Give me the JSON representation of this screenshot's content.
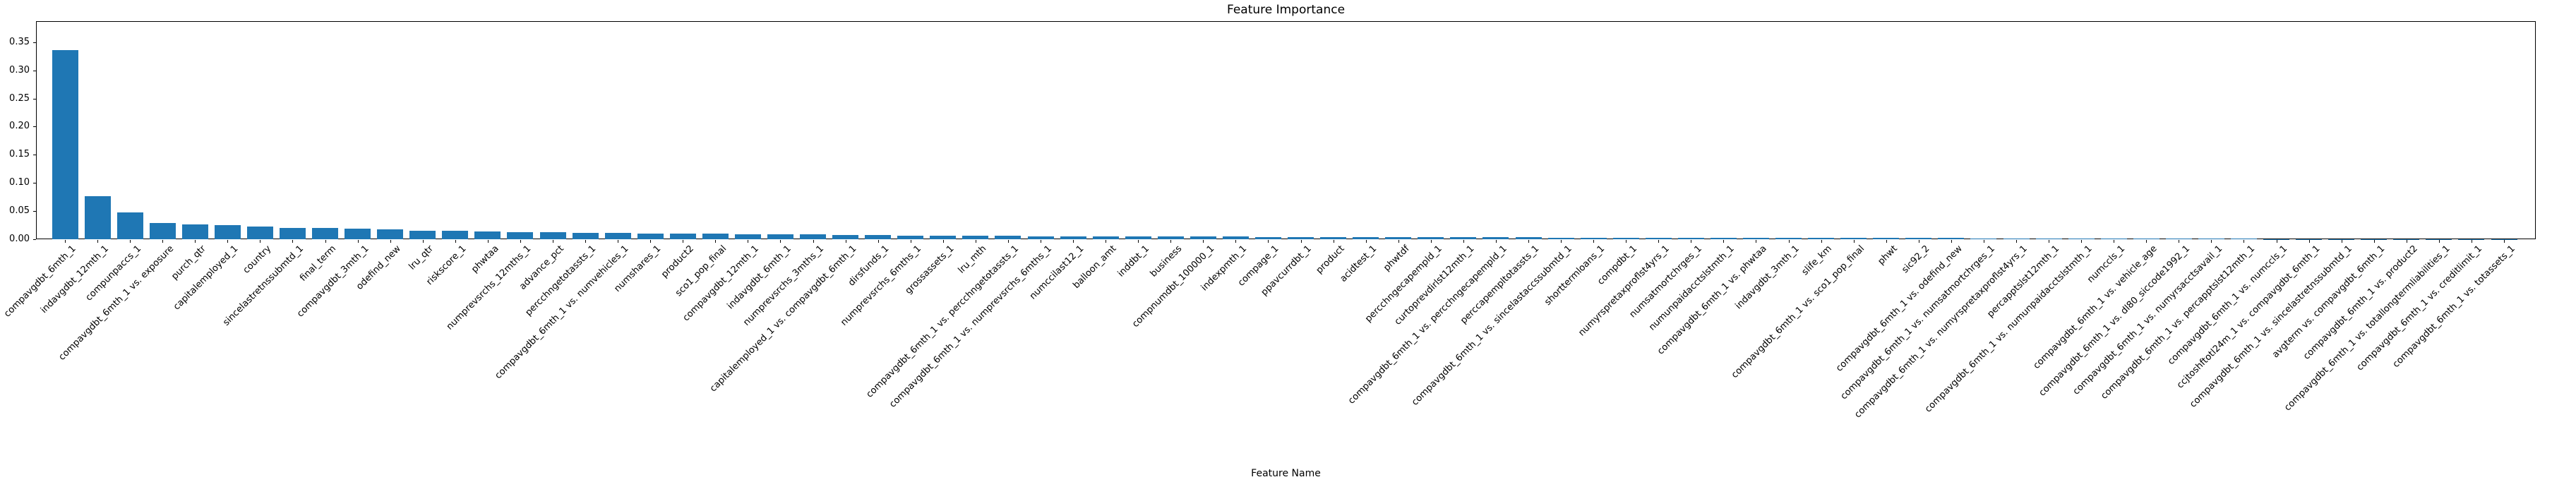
{
  "title": "Feature Importance",
  "xlabel": "Feature Name",
  "chart_data": {
    "type": "bar",
    "title": "Feature Importance",
    "xlabel": "Feature Name",
    "ylabel": "",
    "ylim": [
      0,
      0.3875
    ],
    "grid": false,
    "legend": "none",
    "bar_color": "#1f77b4",
    "axis_color": "#000000",
    "background_color": "#ffffff",
    "ytick_labels": [
      "0.00",
      "0.05",
      "0.10",
      "0.15",
      "0.20",
      "0.25",
      "0.30",
      "0.35"
    ],
    "categories": [
      "compavgdbt_6mth_1",
      "indavgdbt_12mth_1",
      "compunpaccs_1",
      "compavgdbt_6mth_1 vs. exposure",
      "purch_qtr",
      "capitalemployed_1",
      "country",
      "sincelastretnssubmtd_1",
      "final_term",
      "compavgdbt_3mth_1",
      "odefind_new",
      "lru_qtr",
      "riskscore_1",
      "phwtaa",
      "numprevsrchs_12mths_1",
      "advance_pct",
      "percchngetotassts_1",
      "compavgdbt_6mth_1 vs. numvehicles_1",
      "numshares_1",
      "product2",
      "sco1_pop_final",
      "compavgdbt_12mth_1",
      "indavgdbt_6mth_1",
      "numprevsrchs_3mths_1",
      "capitalemployed_1 vs. compavgdbt_6mth_1",
      "dirsfunds_1",
      "numprevsrchs_6mths_1",
      "grossassets_1",
      "lru_mth",
      "compavgdbt_6mth_1 vs. percchngetotassts_1",
      "compavgdbt_6mth_1 vs. numprevsrchs_6mths_1",
      "numccilast12_1",
      "balloon_amt",
      "inddbt_1",
      "business",
      "compnumdbt_100000_1",
      "indexpmth_1",
      "compage_1",
      "ppavcurrdbt_1",
      "product",
      "acidtest_1",
      "phwtdf",
      "percchngecapempld_1",
      "curtoprevdirlst12mth_1",
      "compavgdbt_6mth_1 vs. percchngecapempld_1",
      "perccapempltotassts_1",
      "compavgdbt_6mth_1 vs. sincelastaccssubmtd_1",
      "shorttermloans_1",
      "compdbt_1",
      "numyrspretaxproflst4yrs_1",
      "numsatmortchrges_1",
      "numunpaidacctslstmth_1",
      "compavgdbt_6mth_1 vs. phwtaa",
      "indavgdbt_3mth_1",
      "slife_km",
      "compavgdbt_6mth_1 vs. sco1_pop_final",
      "phwt",
      "sic92_2",
      "compavgdbt_6mth_1 vs. odefind_new",
      "compavgdbt_6mth_1 vs. numsatmortchrges_1",
      "compavgdbt_6mth_1 vs. numyrspretaxproflst4yrs_1",
      "percapptslst12mth_1",
      "compavgdbt_6mth_1 vs. numunpaidacctslstmth_1",
      "numccls_1",
      "compavgdbt_6mth_1 vs. vehicle_age",
      "compavgdbt_6mth_1 vs. dl80_siccode1992_1",
      "compavgdbt_6mth_1 vs. numyrsacctsavail_1",
      "compavgdbt_6mth_1 vs. percapptslst12mth_1",
      "compavgdbt_6mth_1 vs. numccls_1",
      "ccjtoshftotl24m_1 vs. compavgdbt_6mth_1",
      "compavgdbt_6mth_1 vs. sincelastretnssubmtd_1",
      "avgterm vs. compavgdbt_6mth_1",
      "compavgdbt_6mth_1 vs. product2",
      "compavgdbt_6mth_1 vs. totallongtermliabilities_1",
      "compavgdbt_6mth_1 vs. creditlimit_1",
      "compavgdbt_6mth_1 vs. totassets_1"
    ],
    "values": [
      0.336,
      0.077,
      0.047,
      0.029,
      0.0265,
      0.0255,
      0.023,
      0.0205,
      0.0195,
      0.019,
      0.018,
      0.0155,
      0.015,
      0.0135,
      0.0128,
      0.0122,
      0.0117,
      0.011,
      0.0102,
      0.01,
      0.0097,
      0.0092,
      0.0086,
      0.0084,
      0.008,
      0.0076,
      0.0068,
      0.0062,
      0.006,
      0.0058,
      0.0056,
      0.0054,
      0.0052,
      0.005,
      0.0049,
      0.0047,
      0.0045,
      0.0043,
      0.0041,
      0.004,
      0.0038,
      0.0036,
      0.0035,
      0.0034,
      0.0033,
      0.0032,
      0.0031,
      0.003,
      0.0029,
      0.0028,
      0.0027,
      0.0026,
      0.0025,
      0.0024,
      0.0023,
      0.0022,
      0.0021,
      0.002,
      0.0019,
      0.0018,
      0.0017,
      0.0016,
      0.0015,
      0.0014,
      0.0013,
      0.0012,
      0.001,
      0.0008,
      0.0006,
      0.0005,
      0.0004,
      0.0003,
      0.0002,
      0.0002,
      0.0001,
      0.0001
    ]
  }
}
